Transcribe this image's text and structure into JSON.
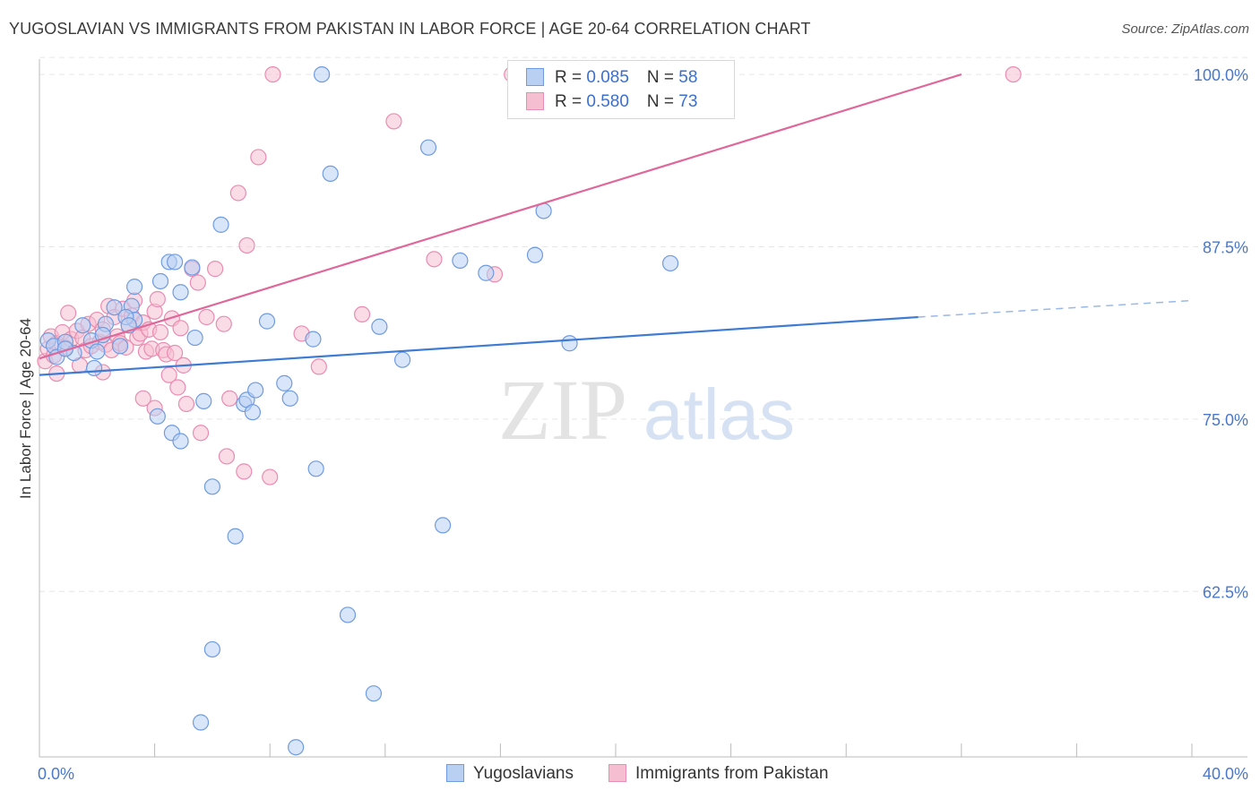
{
  "title": "YUGOSLAVIAN VS IMMIGRANTS FROM PAKISTAN IN LABOR FORCE | AGE 20-64 CORRELATION CHART",
  "source": "Source: ZipAtlas.com",
  "watermark": {
    "zip": "ZIP",
    "atlas": "atlas"
  },
  "colors": {
    "blue": "#3d7bd4",
    "blue_fill": "#b9d0f2",
    "pink": "#e0679a",
    "pink_fill": "#f6bfd1",
    "tick": "#4a78c8"
  },
  "legend": {
    "rows": [
      {
        "r_label": "R = ",
        "r_value": "0.085",
        "n_label": "N = ",
        "n_value": "58"
      },
      {
        "r_label": "R = ",
        "r_value": "0.580",
        "n_label": "N = ",
        "n_value": "73"
      }
    ]
  },
  "chart_data": {
    "type": "scatter",
    "ylabel": "In Labor Force | Age 20-64",
    "xlim": [
      0,
      40
    ],
    "ylim": [
      50.5,
      101.5
    ],
    "x_tick_labels": [
      "0.0%",
      "40.0%"
    ],
    "y_ticks": [
      62.5,
      75.0,
      87.5,
      100.0
    ],
    "y_tick_labels": [
      "62.5%",
      "75.0%",
      "87.5%",
      "100.0%"
    ],
    "grid": true,
    "series": [
      {
        "name": "Yugoslavians",
        "color": "#3d7bd4",
        "trend": {
          "x": [
            0,
            30.5
          ],
          "y": [
            78.2,
            82.4
          ],
          "dashed_to_x": 40,
          "dashed_y": 83.6
        },
        "points": [
          [
            0.3,
            80.7
          ],
          [
            0.5,
            80.3
          ],
          [
            0.6,
            79.5
          ],
          [
            0.9,
            80.6
          ],
          [
            1.2,
            79.8
          ],
          [
            0.9,
            80.1
          ],
          [
            1.5,
            81.8
          ],
          [
            1.8,
            80.7
          ],
          [
            2.0,
            79.9
          ],
          [
            2.3,
            81.9
          ],
          [
            2.2,
            81.1
          ],
          [
            2.6,
            83.1
          ],
          [
            3.2,
            83.2
          ],
          [
            3.3,
            82.2
          ],
          [
            3.0,
            82.4
          ],
          [
            3.3,
            84.6
          ],
          [
            3.1,
            81.8
          ],
          [
            1.9,
            78.7
          ],
          [
            2.8,
            80.3
          ],
          [
            4.2,
            85.0
          ],
          [
            4.5,
            86.4
          ],
          [
            4.7,
            86.4
          ],
          [
            4.9,
            84.2
          ],
          [
            5.3,
            86.0
          ],
          [
            5.4,
            80.9
          ],
          [
            5.7,
            76.3
          ],
          [
            6.3,
            89.1
          ],
          [
            7.1,
            76.1
          ],
          [
            7.2,
            76.4
          ],
          [
            7.5,
            77.1
          ],
          [
            7.4,
            75.5
          ],
          [
            7.9,
            82.1
          ],
          [
            8.5,
            77.6
          ],
          [
            8.7,
            76.5
          ],
          [
            9.5,
            80.8
          ],
          [
            9.6,
            71.4
          ],
          [
            9.8,
            100.0
          ],
          [
            10.1,
            92.8
          ],
          [
            11.8,
            81.7
          ],
          [
            12.6,
            79.3
          ],
          [
            13.5,
            94.7
          ],
          [
            14.0,
            67.3
          ],
          [
            14.6,
            86.5
          ],
          [
            15.5,
            85.6
          ],
          [
            17.2,
            86.9
          ],
          [
            17.5,
            90.1
          ],
          [
            18.4,
            80.5
          ],
          [
            21.9,
            86.3
          ],
          [
            4.6,
            74.0
          ],
          [
            4.9,
            73.4
          ],
          [
            4.1,
            75.2
          ],
          [
            6.0,
            70.1
          ],
          [
            6.8,
            66.5
          ],
          [
            10.7,
            60.8
          ],
          [
            6.0,
            58.3
          ],
          [
            11.6,
            55.1
          ],
          [
            5.6,
            53.0
          ],
          [
            8.9,
            51.2
          ]
        ]
      },
      {
        "name": "Immigrants from Pakistan",
        "color": "#e0679a",
        "trend": {
          "x": [
            0,
            32.0
          ],
          "y": [
            79.4,
            100.0
          ]
        },
        "points": [
          [
            0.2,
            79.2
          ],
          [
            0.3,
            80.1
          ],
          [
            0.4,
            81.0
          ],
          [
            0.5,
            79.6
          ],
          [
            0.6,
            80.5
          ],
          [
            0.8,
            81.3
          ],
          [
            0.9,
            80.2
          ],
          [
            1.0,
            82.7
          ],
          [
            1.1,
            80.8
          ],
          [
            1.3,
            81.4
          ],
          [
            1.5,
            80.9
          ],
          [
            1.6,
            80.0
          ],
          [
            1.7,
            81.9
          ],
          [
            1.8,
            80.3
          ],
          [
            2.0,
            82.2
          ],
          [
            2.1,
            80.6
          ],
          [
            2.2,
            81.5
          ],
          [
            2.3,
            80.4
          ],
          [
            2.4,
            83.2
          ],
          [
            2.5,
            80.0
          ],
          [
            2.6,
            82.4
          ],
          [
            2.7,
            81.0
          ],
          [
            2.8,
            80.5
          ],
          [
            2.9,
            83.0
          ],
          [
            3.0,
            80.2
          ],
          [
            3.1,
            81.8
          ],
          [
            3.2,
            82.5
          ],
          [
            3.3,
            83.6
          ],
          [
            3.4,
            80.9
          ],
          [
            3.5,
            81.2
          ],
          [
            3.6,
            82.0
          ],
          [
            3.7,
            79.9
          ],
          [
            3.8,
            81.5
          ],
          [
            3.9,
            80.1
          ],
          [
            4.0,
            82.8
          ],
          [
            4.1,
            83.7
          ],
          [
            4.2,
            81.3
          ],
          [
            4.3,
            80.0
          ],
          [
            4.4,
            79.7
          ],
          [
            4.5,
            78.2
          ],
          [
            4.6,
            82.3
          ],
          [
            4.7,
            79.8
          ],
          [
            4.8,
            77.3
          ],
          [
            4.9,
            81.6
          ],
          [
            5.0,
            78.9
          ],
          [
            5.1,
            76.1
          ],
          [
            5.3,
            85.9
          ],
          [
            5.5,
            84.9
          ],
          [
            5.8,
            82.4
          ],
          [
            6.1,
            85.9
          ],
          [
            6.4,
            81.9
          ],
          [
            6.6,
            76.5
          ],
          [
            6.9,
            91.4
          ],
          [
            7.2,
            87.6
          ],
          [
            7.6,
            94.0
          ],
          [
            8.1,
            100.0
          ],
          [
            3.6,
            76.5
          ],
          [
            4.0,
            75.8
          ],
          [
            5.6,
            74.0
          ],
          [
            6.5,
            72.3
          ],
          [
            7.1,
            71.2
          ],
          [
            8.0,
            70.8
          ],
          [
            9.1,
            81.2
          ],
          [
            9.7,
            78.8
          ],
          [
            13.7,
            86.6
          ],
          [
            12.3,
            96.6
          ],
          [
            16.4,
            100.0
          ],
          [
            15.8,
            85.5
          ],
          [
            11.2,
            82.6
          ],
          [
            0.6,
            78.3
          ],
          [
            1.4,
            78.9
          ],
          [
            2.2,
            78.4
          ],
          [
            33.8,
            100.0
          ]
        ]
      }
    ]
  },
  "bottom_legend": [
    "Yugoslavians",
    "Immigrants from Pakistan"
  ]
}
